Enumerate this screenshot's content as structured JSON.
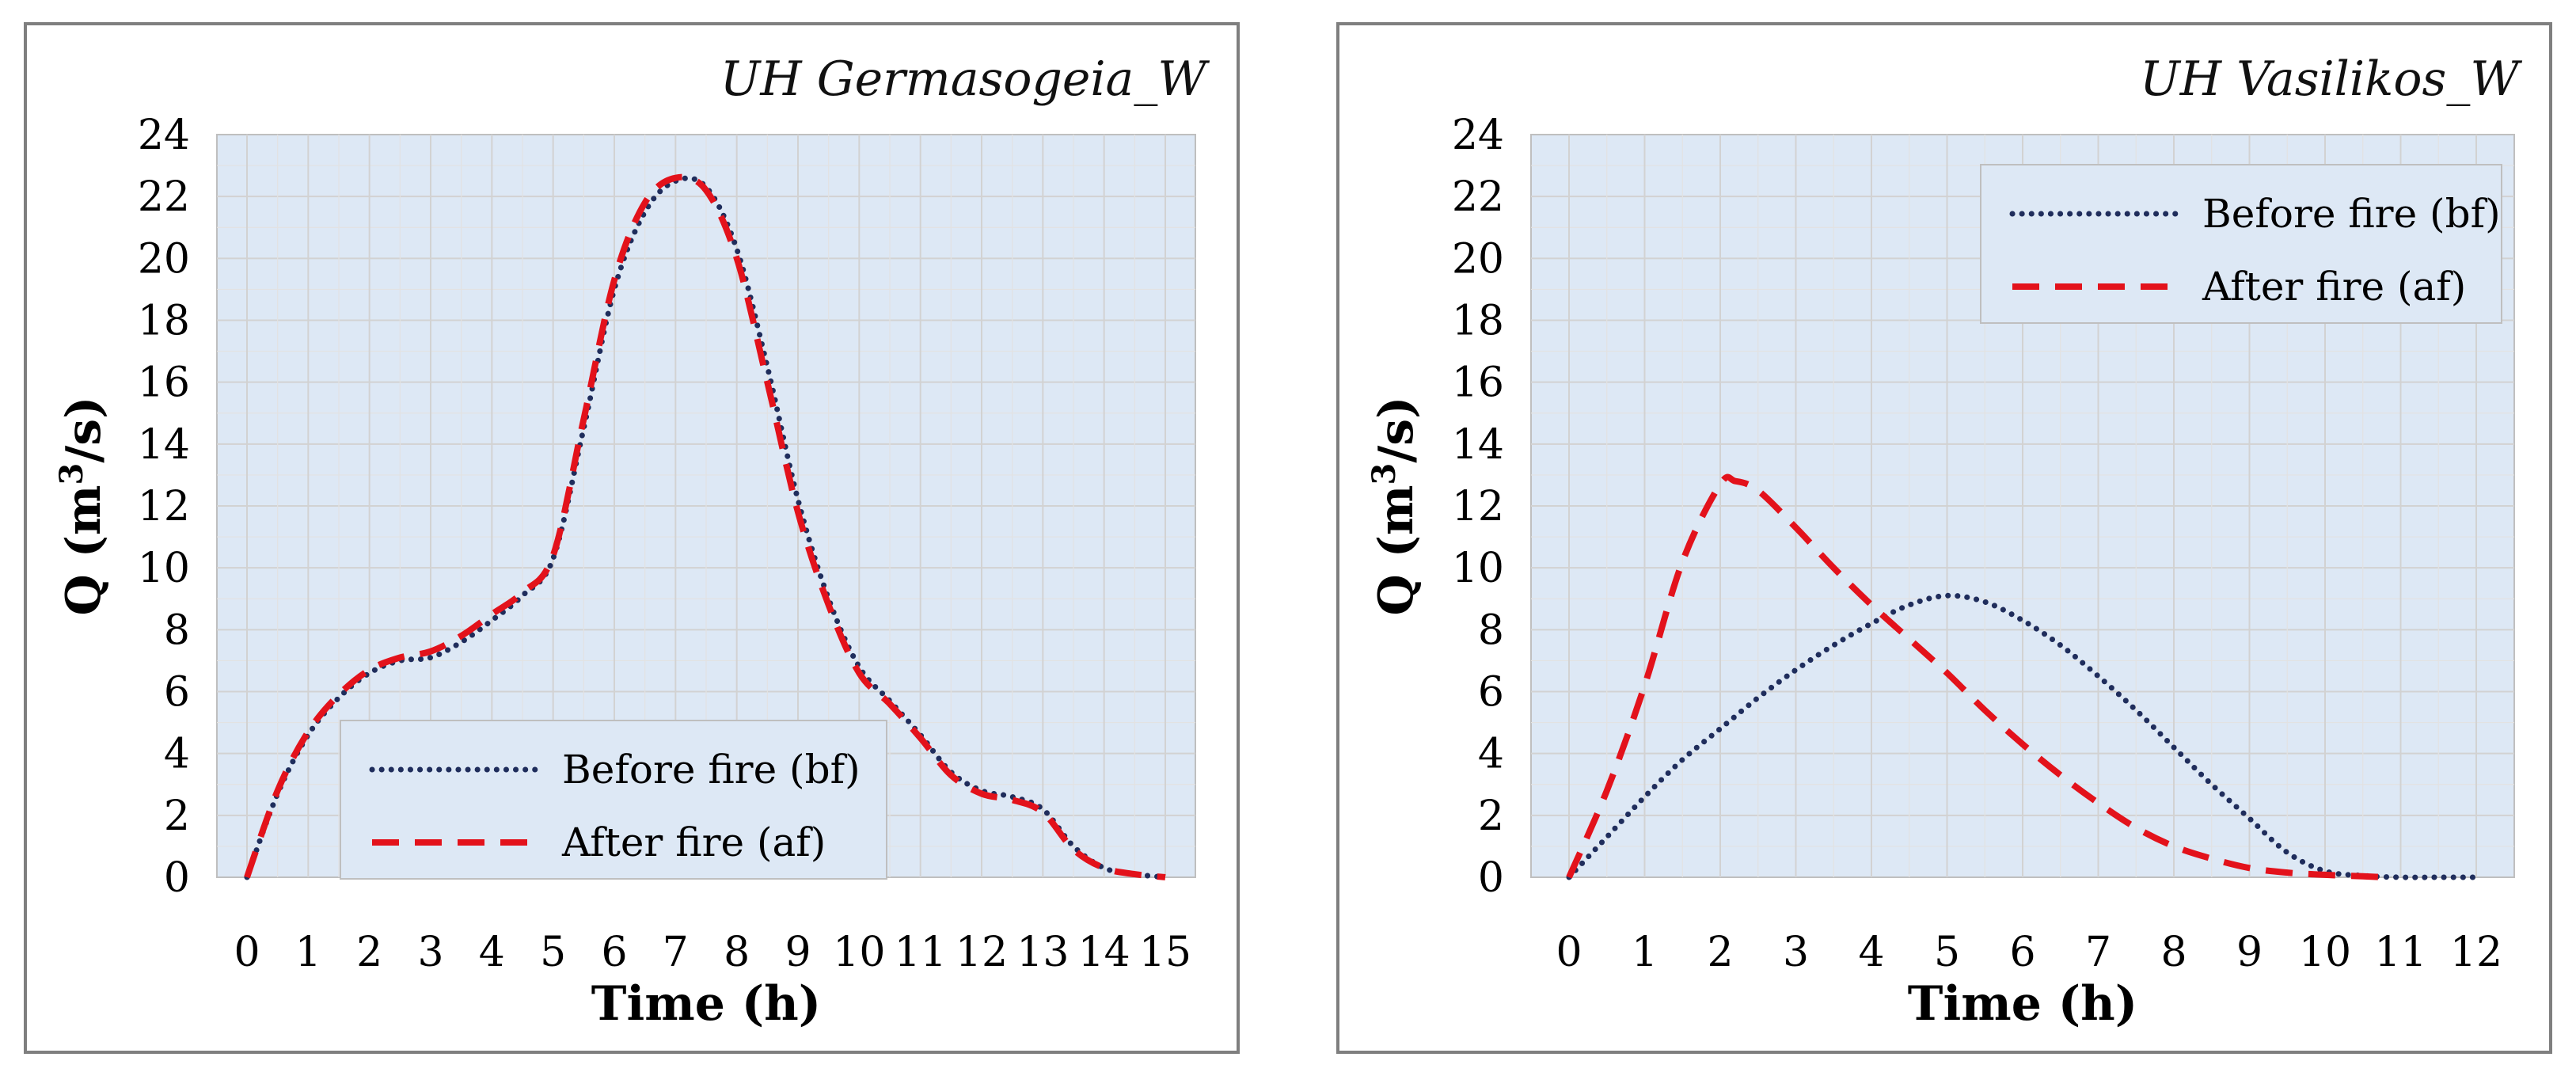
{
  "chart_data": [
    {
      "type": "line",
      "title": "UH Germasogeia_W",
      "xlabel": "Time (h)",
      "ylabel": "Q (m³/s)",
      "ylabel_main": "Q (m",
      "ylabel_sup": "3",
      "ylabel_tail": "/s)",
      "xlim": [
        0,
        15
      ],
      "ylim": [
        0,
        24
      ],
      "x_ticks": [
        "0",
        "1",
        "2",
        "3",
        "4",
        "5",
        "6",
        "7",
        "8",
        "9",
        "10",
        "11",
        "12",
        "13",
        "14",
        "15"
      ],
      "y_ticks": [
        "0",
        "2",
        "4",
        "6",
        "8",
        "10",
        "12",
        "14",
        "16",
        "18",
        "20",
        "22",
        "24"
      ],
      "grid": true,
      "legend_position": "bottom-center",
      "series": [
        {
          "name": "Before fire (bf)",
          "style": "dotted",
          "color": "#1f2d5c",
          "x": [
            0,
            0.5,
            1,
            1.5,
            2,
            2.5,
            3,
            3.5,
            4,
            4.5,
            5,
            5.5,
            6,
            6.5,
            7,
            7.5,
            8,
            8.5,
            9,
            9.5,
            10,
            10.5,
            11,
            11.5,
            12,
            12.5,
            13,
            13.5,
            14,
            14.5,
            15
          ],
          "y": [
            0,
            2.7,
            4.6,
            5.8,
            6.6,
            7.0,
            7.1,
            7.6,
            8.3,
            9.1,
            10.3,
            14.5,
            19.0,
            21.5,
            22.5,
            22.3,
            20.3,
            16.5,
            12.2,
            9.0,
            6.8,
            5.7,
            4.6,
            3.4,
            2.8,
            2.6,
            2.2,
            1.0,
            0.3,
            0.1,
            0
          ]
        },
        {
          "name": "After fire (af)",
          "style": "dashed",
          "color": "#e3121b",
          "x": [
            0,
            0.5,
            1,
            1.5,
            2,
            2.5,
            3,
            3.5,
            4,
            4.5,
            5,
            5.5,
            6,
            6.5,
            7,
            7.5,
            8,
            8.5,
            9,
            9.5,
            10,
            10.5,
            11,
            11.5,
            12,
            12.5,
            13,
            13.5,
            14,
            14.5,
            15
          ],
          "y": [
            0,
            2.8,
            4.7,
            5.9,
            6.7,
            7.1,
            7.3,
            7.8,
            8.5,
            9.2,
            10.4,
            14.8,
            19.3,
            21.8,
            22.6,
            22.2,
            20.0,
            16.0,
            11.8,
            8.8,
            6.6,
            5.6,
            4.5,
            3.3,
            2.7,
            2.5,
            2.1,
            0.9,
            0.3,
            0.1,
            0
          ]
        }
      ]
    },
    {
      "type": "line",
      "title": "UH Vasilikos_W",
      "xlabel": "Time (h)",
      "ylabel": "Q (m³/s)",
      "ylabel_main": "Q (m",
      "ylabel_sup": "3",
      "ylabel_tail": "/s)",
      "xlim": [
        0,
        12
      ],
      "ylim": [
        0,
        24
      ],
      "x_ticks": [
        "0",
        "1",
        "2",
        "3",
        "4",
        "5",
        "6",
        "7",
        "8",
        "9",
        "10",
        "11",
        "12"
      ],
      "y_ticks": [
        "0",
        "2",
        "4",
        "6",
        "8",
        "10",
        "12",
        "14",
        "16",
        "18",
        "20",
        "22",
        "24"
      ],
      "grid": true,
      "legend_position": "top-right",
      "series": [
        {
          "name": "Before fire (bf)",
          "style": "dotted",
          "color": "#1f2d5c",
          "x": [
            0,
            0.5,
            1,
            1.5,
            2,
            2.5,
            3,
            3.5,
            4,
            4.5,
            5,
            5.5,
            6,
            6.5,
            7,
            7.5,
            8,
            8.5,
            9,
            9.5,
            10,
            10.5,
            11,
            11.5,
            12
          ],
          "y": [
            0,
            1.3,
            2.6,
            3.8,
            4.8,
            5.8,
            6.7,
            7.5,
            8.2,
            8.8,
            9.1,
            8.9,
            8.3,
            7.5,
            6.5,
            5.4,
            4.2,
            3.0,
            1.9,
            0.8,
            0.2,
            0.05,
            0,
            0,
            0
          ]
        },
        {
          "name": "After fire (af)",
          "style": "dashed",
          "color": "#e3121b",
          "x": [
            0,
            0.5,
            1,
            1.5,
            2,
            2.2,
            2.5,
            3,
            3.5,
            4,
            4.5,
            5,
            5.5,
            6,
            6.5,
            7,
            7.5,
            8,
            8.5,
            9,
            9.5,
            10,
            10.5,
            10.8
          ],
          "y": [
            0,
            2.8,
            6.2,
            10.2,
            12.7,
            12.8,
            12.5,
            11.3,
            10.0,
            8.8,
            7.7,
            6.6,
            5.4,
            4.3,
            3.3,
            2.4,
            1.6,
            1.0,
            0.6,
            0.3,
            0.15,
            0.08,
            0.03,
            0
          ]
        }
      ]
    }
  ]
}
